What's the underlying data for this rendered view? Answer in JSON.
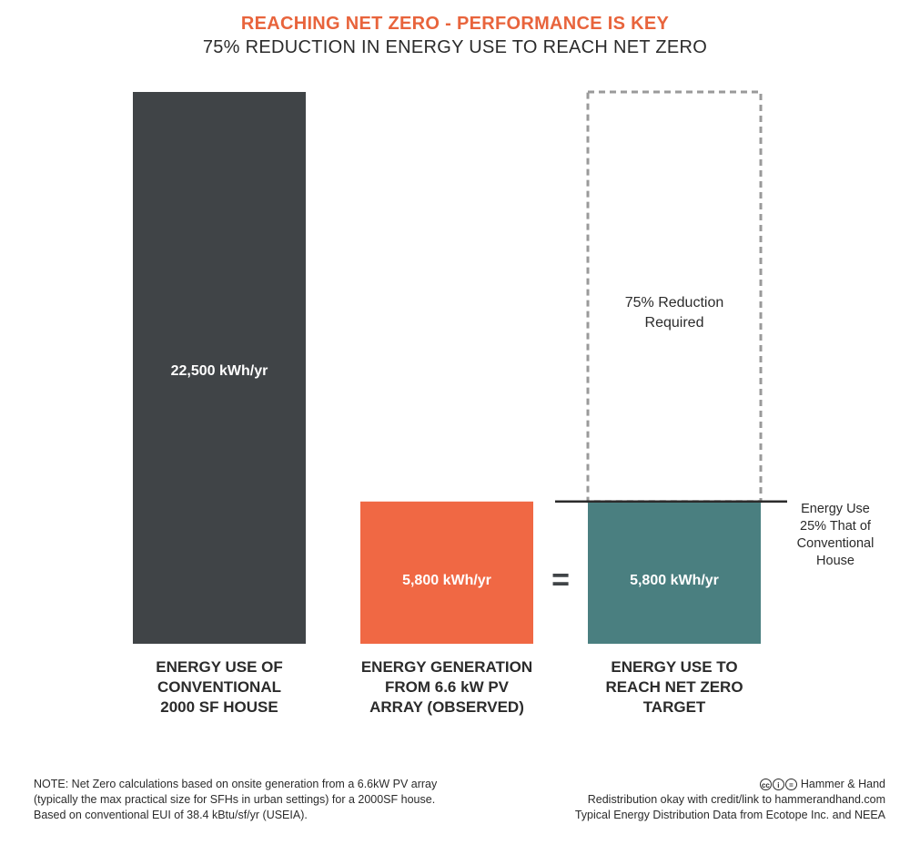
{
  "header": {
    "title": "REACHING NET ZERO - PERFORMANCE IS KEY",
    "subtitle": "75% REDUCTION IN ENERGY USE TO REACH NET ZERO"
  },
  "colors": {
    "title": "#e8643c",
    "conventional": "#404447",
    "generation": "#f06844",
    "target": "#4a7f80",
    "reduction_outline": "#9a9a9a",
    "bar_label": "#ffffff",
    "text": "#2b2b2b"
  },
  "chart_data": {
    "type": "bar",
    "categories": [
      "ENERGY USE OF CONVENTIONAL 2000 SF HOUSE",
      "ENERGY GENERATION FROM 6.6 kW PV ARRAY (OBSERVED)",
      "ENERGY USE TO REACH NET ZERO TARGET"
    ],
    "category_lines": [
      [
        "ENERGY USE OF",
        "CONVENTIONAL",
        "2000 SF HOUSE"
      ],
      [
        "ENERGY GENERATION",
        "FROM 6.6 kW PV",
        "ARRAY (OBSERVED)"
      ],
      [
        "ENERGY USE TO",
        "REACH NET ZERO",
        "TARGET"
      ]
    ],
    "values": [
      22500,
      5800,
      5800
    ],
    "value_labels": [
      "22,500 kWh/yr",
      "5,800 kWh/yr",
      "5,800 kWh/yr"
    ],
    "unit": "kWh/yr",
    "ylim": [
      0,
      22500
    ],
    "grid": false,
    "reduction": {
      "category_index": 2,
      "from": 5800,
      "to": 22500,
      "label_lines": [
        "75% Reduction",
        "Required"
      ]
    },
    "equals_sign": "=",
    "reference_line": {
      "value": 5800,
      "label_lines": [
        "Energy Use",
        "25% That of",
        "Conventional",
        "House"
      ]
    }
  },
  "footer": {
    "note_lines": [
      "NOTE: Net Zero calculations based on onsite generation from a 6.6kW PV array",
      "(typically the max practical size for SFHs in urban settings) for a 2000SF house.",
      "Based on conventional EUI of 38.4 kBtu/sf/yr (USEIA)."
    ],
    "brand": "Hammer & Hand",
    "credit_lines": [
      "Redistribution okay with credit/link to hammerandhand.com",
      "Typical Energy Distribution Data from Ecotope Inc. and NEEA"
    ],
    "cc_icons": [
      "cc",
      "i",
      "="
    ]
  }
}
